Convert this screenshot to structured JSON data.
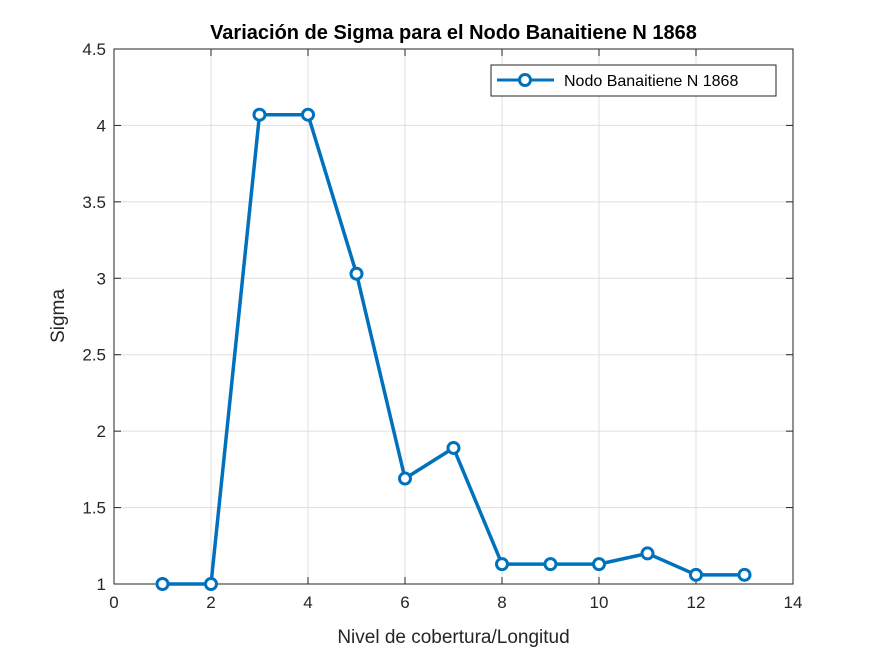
{
  "chart_data": {
    "type": "line",
    "title": "Variación de Sigma para el Nodo Banaitiene N 1868",
    "xlabel": "Nivel de cobertura/Longitud",
    "ylabel": "Sigma",
    "xlim": [
      0,
      14
    ],
    "ylim": [
      1,
      4.5
    ],
    "xticks": [
      0,
      2,
      4,
      6,
      8,
      10,
      12,
      14
    ],
    "yticks": [
      1,
      1.5,
      2,
      2.5,
      3,
      3.5,
      4,
      4.5
    ],
    "xtick_labels": [
      "0",
      "2",
      "4",
      "6",
      "8",
      "10",
      "12",
      "14"
    ],
    "ytick_labels": [
      "1",
      "1.5",
      "2",
      "2.5",
      "3",
      "3.5",
      "4",
      "4.5"
    ],
    "grid": true,
    "legend_position": "top-right",
    "series": [
      {
        "name": "Nodo Banaitiene N 1868",
        "color": "#0072BD",
        "marker": "circle",
        "x": [
          1,
          2,
          3,
          4,
          5,
          6,
          7,
          8,
          9,
          10,
          11,
          12,
          13
        ],
        "y": [
          1.0,
          1.0,
          4.07,
          4.07,
          3.03,
          1.69,
          1.89,
          1.13,
          1.13,
          1.13,
          1.2,
          1.06,
          1.06
        ]
      }
    ]
  }
}
